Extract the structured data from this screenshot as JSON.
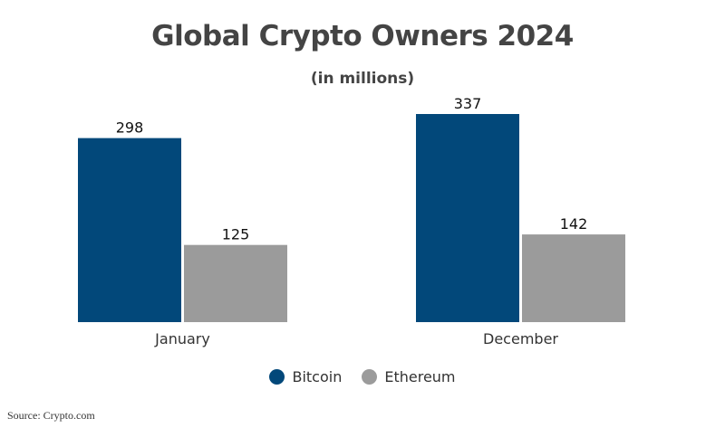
{
  "chart_data": {
    "type": "bar",
    "title": "Global Crypto Owners 2024",
    "subtitle": "(in millions)",
    "categories": [
      "January",
      "December"
    ],
    "series": [
      {
        "name": "Bitcoin",
        "values": [
          298,
          337
        ],
        "color": "#02487a"
      },
      {
        "name": "Ethereum",
        "values": [
          125,
          142
        ],
        "color": "#9b9b9b"
      }
    ],
    "ylim": [
      0,
      337
    ],
    "grid": false,
    "legend_position": "bottom-center"
  },
  "source": "Source: Crypto.com"
}
